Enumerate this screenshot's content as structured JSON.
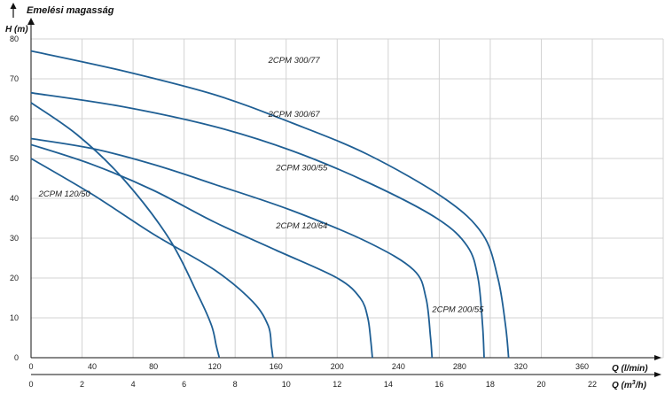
{
  "chart_data": {
    "type": "line",
    "title": "Emelési magasság",
    "ylabel": "H (m)",
    "xlabel": "Q (l/min)",
    "x2label_prefix": "Q (m",
    "x2label_sup": "3",
    "x2label_suffix": "/h)",
    "xlim": [
      0,
      413
    ],
    "ylim": [
      0,
      80
    ],
    "grid": true,
    "y_ticks": [
      "80",
      "70",
      "60",
      "50",
      "40",
      "30",
      "20",
      "10",
      "0"
    ],
    "x_ticks": [
      "0",
      "40",
      "80",
      "120",
      "160",
      "200",
      "240",
      "280",
      "320",
      "360"
    ],
    "x2_ticks": [
      "0",
      "2",
      "4",
      "6",
      "8",
      "10",
      "12",
      "14",
      "16",
      "18",
      "20",
      "22"
    ],
    "curve_color": "#1f5f94",
    "series": [
      {
        "name": "2CPM 300/77",
        "x": [
          0,
          60,
          120,
          170,
          220,
          270,
          295,
          305,
          310,
          312
        ],
        "y": [
          77,
          72,
          66,
          59,
          51,
          40,
          31,
          20,
          8,
          0
        ]
      },
      {
        "name": "2CPM 300/67",
        "x": [
          0,
          60,
          120,
          170,
          220,
          265,
          285,
          292,
          295,
          296
        ],
        "y": [
          66.5,
          63,
          58,
          52,
          44,
          35,
          28,
          20,
          8,
          0
        ]
      },
      {
        "name": "2CPM 300/55",
        "x": [
          0,
          40,
          80,
          120,
          170,
          220,
          250,
          258,
          261,
          262
        ],
        "y": [
          55,
          52.5,
          48.5,
          43.5,
          37,
          29,
          22,
          15,
          5,
          0
        ]
      },
      {
        "name": "2CPM 120/64",
        "x": [
          0,
          30,
          60,
          90,
          110,
          118,
          121,
          123
        ],
        "y": [
          64,
          56,
          45,
          30,
          15,
          8,
          3,
          0
        ]
      },
      {
        "name": "2CPM 200/55",
        "x": [
          0,
          40,
          80,
          120,
          160,
          200,
          215,
          220,
          222,
          223
        ],
        "y": [
          53.5,
          48.5,
          42,
          34,
          27,
          20,
          15,
          10,
          4,
          0
        ]
      },
      {
        "name": "2CPM 120/50",
        "x": [
          0,
          40,
          80,
          120,
          145,
          155,
          157,
          158
        ],
        "y": [
          50,
          41,
          31,
          22,
          14,
          8,
          3,
          0
        ]
      }
    ],
    "labels": [
      {
        "text": "2CPM 300/77",
        "x": 155,
        "y": 74
      },
      {
        "text": "2CPM 300/67",
        "x": 155,
        "y": 60.5
      },
      {
        "text": "2CPM 300/55",
        "x": 160,
        "y": 47
      },
      {
        "text": "2CPM 120/50",
        "x": 5,
        "y": 40.5
      },
      {
        "text": "2CPM 120/64",
        "x": 160,
        "y": 32.5
      },
      {
        "text": "2CPM 200/55",
        "x": 262,
        "y": 11.5
      }
    ]
  }
}
